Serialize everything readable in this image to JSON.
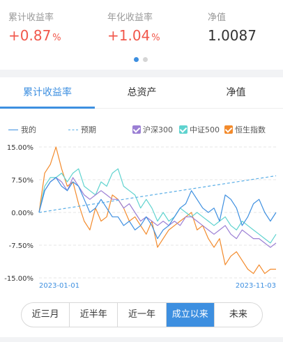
{
  "summary": {
    "metrics": [
      {
        "label": "累计收益率",
        "value": "+0.87",
        "unit": "%"
      },
      {
        "label": "年化收益率",
        "value": "+1.04",
        "unit": "%"
      },
      {
        "label": "净值",
        "value": "1.0087",
        "unit": ""
      }
    ],
    "carousel": {
      "count": 2,
      "active": 0
    }
  },
  "tabs": [
    "累计收益率",
    "总资产",
    "净值"
  ],
  "legend": {
    "mine": "我的",
    "expected": "预期",
    "hs300": "沪深300",
    "zz500": "中证500",
    "hsi": "恒生指数"
  },
  "colors": {
    "accent": "#3d8fe0",
    "red": "#f1574b",
    "mine": "#3d8fe0",
    "expected": "#5aaee6",
    "hs300": "#9b7fd4",
    "zz500": "#5fd3cf",
    "hsi": "#f38a2b"
  },
  "chart_data": {
    "type": "line",
    "ylim": [
      -15,
      15
    ],
    "y_ticks": [
      "15.00%",
      "7.50%",
      "0.00%",
      "-7.50%",
      "-15.00%"
    ],
    "x_ticks": [
      "2023-01-01",
      "2023-11-03"
    ],
    "series": [
      {
        "name": "我的",
        "values": [
          0,
          5,
          7,
          8,
          6,
          5,
          7,
          6,
          3,
          0,
          1,
          3,
          1,
          -1,
          -1,
          -3,
          -2,
          -4,
          -3,
          -1,
          -3,
          -6,
          -4,
          -3,
          -1,
          1,
          2,
          5,
          3,
          1,
          0,
          1,
          -2,
          4,
          3,
          1,
          -3,
          -1,
          2,
          3,
          0,
          -2,
          0
        ]
      },
      {
        "name": "预期",
        "values": [
          0,
          0.2,
          0.4,
          0.6,
          0.8,
          1.0,
          1.2,
          1.4,
          1.6,
          1.8,
          2.0,
          2.2,
          2.4,
          2.6,
          2.8,
          3.0,
          3.2,
          3.4,
          3.6,
          3.8,
          4.0,
          4.2,
          4.4,
          4.6,
          4.8,
          5.0,
          5.2,
          5.4,
          5.6,
          5.8,
          6.0,
          6.2,
          6.4,
          6.6,
          6.8,
          7.0,
          7.2,
          7.4,
          7.6,
          7.8,
          8.0,
          8.2,
          8.4
        ]
      },
      {
        "name": "沪深300",
        "values": [
          0,
          5,
          7,
          8,
          7,
          5,
          8,
          6,
          4,
          3,
          4,
          5,
          4,
          3,
          3,
          1,
          2,
          0,
          -2,
          -1,
          -2,
          -3,
          -2,
          -3,
          -2,
          -3,
          -1,
          -1,
          -2,
          -3,
          -4,
          -5,
          -4,
          -3,
          -5,
          -6,
          -4,
          -5,
          -6,
          -6,
          -7,
          -8,
          -7
        ]
      },
      {
        "name": "中证500",
        "values": [
          0,
          6,
          8,
          8,
          9,
          7,
          9,
          10,
          6,
          5,
          4,
          7,
          6,
          9,
          10,
          6,
          5,
          4,
          1,
          3,
          1,
          -2,
          0,
          -2,
          -1,
          1,
          0,
          -1,
          0,
          -1,
          -2,
          -3,
          -2,
          -1,
          -3,
          -4,
          -2,
          -3,
          -4,
          -5,
          -6,
          -7,
          -5
        ]
      },
      {
        "name": "恒生指数",
        "values": [
          0,
          9,
          11,
          15,
          10,
          6,
          7,
          2,
          -2,
          -4,
          1,
          -2,
          -1,
          4,
          3,
          1,
          -2,
          -1,
          -3,
          -5,
          -2,
          -8,
          -6,
          -4,
          -3,
          -2,
          -1,
          0,
          -4,
          -3,
          -6,
          -8,
          -6,
          -12,
          -10,
          -9,
          -11,
          -13,
          -14,
          -12,
          -14,
          -13,
          -13
        ]
      }
    ]
  },
  "range_buttons": [
    "近三月",
    "近半年",
    "近一年",
    "成立以来",
    "未来"
  ],
  "range_active": 3
}
